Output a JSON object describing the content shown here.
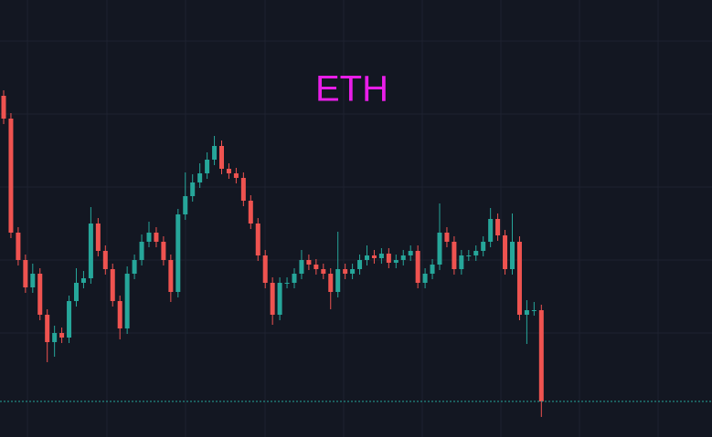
{
  "chart_data": {
    "type": "candlestick",
    "title": "ETH",
    "up_color": "#26a69a",
    "down_color": "#ef5350",
    "title_color": "#e91ee9",
    "last_price_color": "#26a69a",
    "ylim": [
      0,
      479
    ],
    "last_price": 39,
    "open": [
      374,
      349,
      224,
      194,
      164,
      179,
      134,
      104,
      114,
      109,
      149,
      169,
      174,
      234,
      204,
      184,
      149,
      119,
      179,
      194,
      214,
      224,
      214,
      194,
      159,
      244,
      264,
      279,
      289,
      304,
      319,
      294,
      289,
      284,
      259,
      234,
      199,
      169,
      134,
      169,
      169,
      179,
      194,
      189,
      184,
      179,
      159,
      184,
      179,
      184,
      194,
      199,
      196,
      201,
      191,
      194,
      199,
      204,
      169,
      179,
      189,
      224,
      214,
      184,
      199,
      199,
      204,
      214,
      239,
      221,
      184,
      214,
      134,
      139,
      139
    ],
    "high": [
      380,
      355,
      230,
      200,
      190,
      185,
      140,
      122,
      120,
      155,
      185,
      182,
      252,
      240,
      210,
      190,
      155,
      187,
      200,
      222,
      236,
      230,
      220,
      200,
      250,
      290,
      288,
      300,
      312,
      330,
      325,
      300,
      295,
      290,
      265,
      240,
      205,
      175,
      175,
      175,
      185,
      205,
      200,
      195,
      190,
      185,
      225,
      190,
      190,
      200,
      210,
      205,
      207,
      207,
      200,
      205,
      210,
      210,
      185,
      195,
      256,
      230,
      220,
      205,
      205,
      210,
      220,
      251,
      245,
      227,
      245,
      220,
      150,
      148,
      145
    ],
    "low": [
      343,
      218,
      188,
      158,
      158,
      128,
      82,
      88,
      103,
      103,
      143,
      163,
      168,
      198,
      178,
      143,
      107,
      113,
      173,
      188,
      208,
      208,
      188,
      148,
      153,
      238,
      258,
      273,
      283,
      298,
      288,
      283,
      278,
      253,
      228,
      193,
      163,
      123,
      128,
      163,
      163,
      173,
      183,
      178,
      173,
      140,
      153,
      173,
      173,
      178,
      188,
      190,
      190,
      185,
      185,
      188,
      193,
      163,
      163,
      173,
      183,
      208,
      178,
      178,
      193,
      193,
      198,
      208,
      215,
      178,
      178,
      128,
      102,
      133,
      22
    ],
    "close": [
      349,
      224,
      194,
      164,
      179,
      134,
      104,
      114,
      109,
      149,
      169,
      174,
      234,
      204,
      184,
      149,
      119,
      179,
      194,
      214,
      224,
      214,
      194,
      159,
      244,
      264,
      279,
      289,
      304,
      319,
      294,
      289,
      284,
      259,
      234,
      199,
      169,
      134,
      169,
      169,
      179,
      194,
      189,
      184,
      179,
      159,
      184,
      179,
      184,
      194,
      199,
      196,
      201,
      191,
      194,
      199,
      204,
      169,
      179,
      189,
      224,
      214,
      184,
      199,
      199,
      204,
      214,
      239,
      221,
      184,
      214,
      134,
      139,
      139,
      39
    ]
  }
}
